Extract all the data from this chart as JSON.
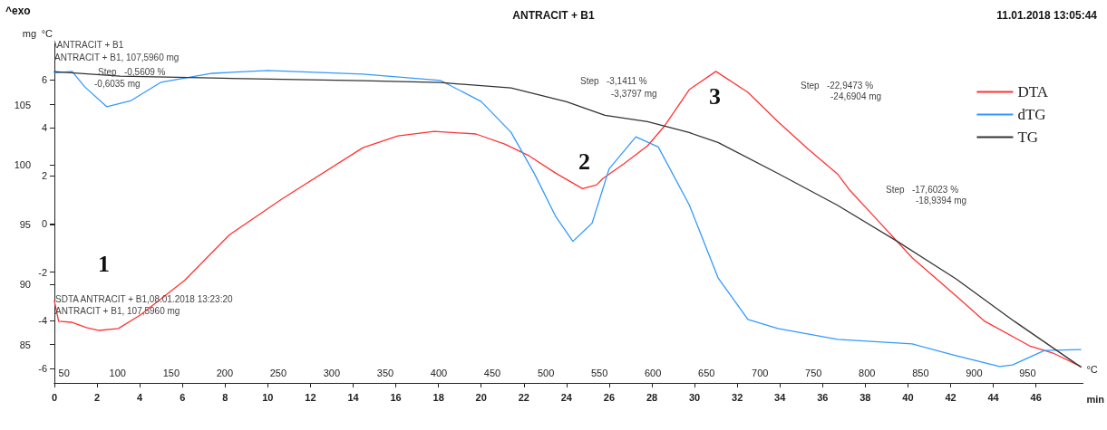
{
  "chart_data": {
    "type": "line",
    "title": "ANTRACIT + B1",
    "subtitle": "11.01.2018 13:05:44",
    "ylabel": "°C",
    "y2label": "mg",
    "xlabel": "min",
    "x2label": "°C",
    "xlim": [
      0,
      48.2
    ],
    "xticks": [
      0,
      2,
      4,
      6,
      8,
      10,
      12,
      14,
      16,
      18,
      20,
      22,
      24,
      26,
      28,
      30,
      32,
      34,
      36,
      38,
      40,
      42,
      44,
      46
    ],
    "x2lim": [
      40.9,
      1001.7
    ],
    "x2ticks": [
      50,
      100,
      150,
      200,
      250,
      300,
      350,
      400,
      450,
      500,
      550,
      600,
      650,
      700,
      750,
      800,
      850,
      900,
      950
    ],
    "ylim": [
      -6.6,
      7.5
    ],
    "yticks": [
      -6,
      -4,
      -2,
      0,
      2,
      4,
      6
    ],
    "y2lim": [
      81.8,
      110.1
    ],
    "y2ticks": [
      85,
      90,
      95,
      100,
      105
    ],
    "grid": false,
    "legend": "top right",
    "marker": "none",
    "line_style": "solid",
    "series": [
      {
        "name": "DTA",
        "color": "#ff3333",
        "x": [
          0,
          0.2,
          0.8,
          1.5,
          2.1,
          3,
          4.04,
          6.1,
          8.2,
          10.7,
          14.46,
          16.1,
          17.8,
          19.75,
          21.1,
          22.25,
          23.5,
          24.75,
          25.4,
          25.7,
          26.67,
          27.8,
          28.6,
          29.75,
          31.0,
          32.5,
          33.9,
          35.3,
          36.7,
          37.25,
          38.5,
          40.2,
          42.25,
          43.6,
          45.7,
          46.8,
          48.1
        ],
        "values": [
          -3.2,
          -4.04,
          -4.08,
          -4.3,
          -4.42,
          -4.34,
          -3.77,
          -2.34,
          -0.45,
          1.06,
          3.17,
          3.66,
          3.85,
          3.74,
          3.32,
          2.83,
          2.11,
          1.47,
          1.62,
          1.89,
          2.49,
          3.25,
          4.08,
          5.58,
          6.34,
          5.47,
          4.26,
          3.13,
          2.08,
          1.43,
          0.23,
          -1.4,
          -2.98,
          -4.04,
          -5.06,
          -5.36,
          -5.92
        ]
      },
      {
        "name": "dTG",
        "color": "#3399ff",
        "x": [
          0,
          0.83,
          1.42,
          2.46,
          3.6,
          5.0,
          7.4,
          10,
          14.46,
          18.1,
          20,
          21.4,
          22.5,
          23.5,
          24.3,
          25.2,
          26.0,
          27.25,
          28.3,
          29.75,
          31.1,
          32.5,
          33.9,
          36.7,
          40.2,
          42.25,
          44.3,
          44.9,
          46.4,
          48.1
        ],
        "values": [
          6.27,
          6.34,
          5.7,
          4.87,
          5.13,
          5.89,
          6.26,
          6.38,
          6.23,
          5.96,
          5.09,
          3.81,
          2.08,
          0.3,
          -0.72,
          0.04,
          2.3,
          3.62,
          3.2,
          0.8,
          -2.23,
          -3.96,
          -4.34,
          -4.79,
          -4.98,
          -5.47,
          -5.92,
          -5.85,
          -5.25,
          -5.21
        ]
      },
      {
        "name": "TG",
        "color": "#333333",
        "axis": "y2",
        "x": [
          0,
          3.08,
          7.4,
          14.46,
          18.1,
          21.4,
          24.0,
          25.8,
          27.8,
          29.75,
          31.1,
          33.9,
          36.7,
          39.5,
          42.25,
          45.0,
          48.1
        ],
        "values": [
          107.75,
          107.37,
          107.22,
          106.99,
          106.84,
          106.39,
          105.25,
          104.11,
          103.58,
          102.67,
          101.84,
          99.27,
          96.61,
          93.6,
          90.48,
          86.92,
          83.13
        ]
      }
    ],
    "annotations": [
      "^exo",
      "\\ANTRACIT + B1",
      "ANTRACIT + B1, 107,5960 mg",
      "Step   -0,5609 %",
      "-0,6035 mg",
      "Step   -3,1411 %",
      "-3,3797 mg",
      "Step   -22,9473 %",
      "-24,6904 mg",
      "Step   -17,6023 %",
      "-18,9394 mg",
      "SDTA ANTRACIT + B1,08.01.2018 13:23:20",
      "ANTRACIT + B1, 107,5960 mg",
      "1",
      "2",
      "3"
    ]
  }
}
